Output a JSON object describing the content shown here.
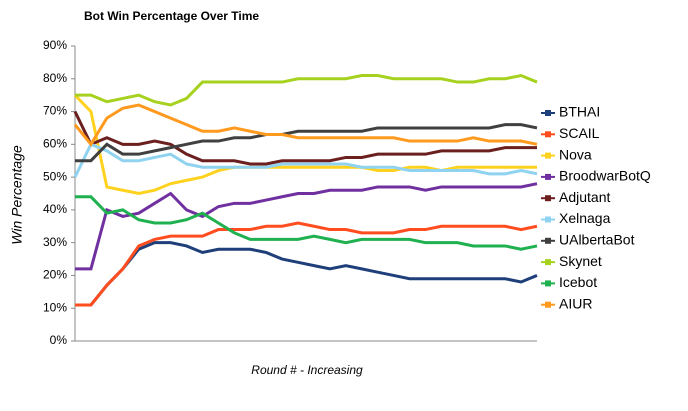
{
  "chart_data": {
    "type": "line",
    "title": "Bot Win Percentage  Over Time",
    "x_label": "Round # - Increasing",
    "y_label": "Win Percentage",
    "categories": [
      null,
      null,
      null,
      null,
      null,
      null,
      null,
      null,
      null,
      null,
      null,
      null,
      null,
      null,
      null,
      null,
      null,
      null,
      null,
      null,
      null,
      null,
      null,
      null,
      null,
      null,
      null,
      null,
      null,
      null
    ],
    "ylim": [
      0,
      90
    ],
    "yticks": [
      {
        "value": 0,
        "label": "0%"
      },
      {
        "value": 10,
        "label": "10%"
      },
      {
        "value": 20,
        "label": "20%"
      },
      {
        "value": 30,
        "label": "30%"
      },
      {
        "value": 40,
        "label": "40%"
      },
      {
        "value": 50,
        "label": "50%"
      },
      {
        "value": 60,
        "label": "60%"
      },
      {
        "value": 70,
        "label": "70%"
      },
      {
        "value": 80,
        "label": "80%"
      },
      {
        "value": 90,
        "label": "90%"
      }
    ],
    "grid": false,
    "legend": "right",
    "series": [
      {
        "name": "BTHAI",
        "color": "#1f3f7a",
        "values": [
          11,
          11,
          17,
          22,
          28,
          30,
          30,
          29,
          27,
          28,
          28,
          28,
          27,
          25,
          24,
          23,
          22,
          23,
          22,
          21,
          20,
          19,
          19,
          19,
          19,
          19,
          19,
          19,
          18,
          20
        ]
      },
      {
        "name": "SCAIL",
        "color": "#ff4d1f",
        "values": [
          11,
          11,
          17,
          22,
          29,
          31,
          32,
          32,
          32,
          34,
          34,
          34,
          35,
          35,
          36,
          35,
          34,
          34,
          33,
          33,
          33,
          34,
          34,
          35,
          35,
          35,
          35,
          35,
          34,
          35
        ]
      },
      {
        "name": "Nova",
        "color": "#ffd21f",
        "values": [
          75,
          70,
          47,
          46,
          45,
          46,
          48,
          49,
          50,
          52,
          53,
          53,
          53,
          53,
          53,
          53,
          53,
          53,
          53,
          52,
          52,
          53,
          53,
          52,
          53,
          53,
          53,
          53,
          53,
          53
        ]
      },
      {
        "name": "BroodwarBotQ",
        "color": "#7030a0",
        "values": [
          22,
          22,
          40,
          38,
          39,
          42,
          45,
          40,
          38,
          41,
          42,
          42,
          43,
          44,
          45,
          45,
          46,
          46,
          46,
          47,
          47,
          47,
          46,
          47,
          47,
          47,
          47,
          47,
          47,
          48
        ]
      },
      {
        "name": "Adjutant",
        "color": "#6b1f1f",
        "values": [
          70,
          60,
          62,
          60,
          60,
          61,
          60,
          57,
          55,
          55,
          55,
          54,
          54,
          55,
          55,
          55,
          55,
          56,
          56,
          57,
          57,
          57,
          57,
          58,
          58,
          58,
          58,
          59,
          59,
          59
        ]
      },
      {
        "name": "Xelnaga",
        "color": "#8fd3f0",
        "values": [
          50,
          60,
          58,
          55,
          55,
          56,
          57,
          54,
          53,
          53,
          53,
          53,
          53,
          54,
          54,
          54,
          54,
          54,
          53,
          53,
          53,
          52,
          52,
          52,
          52,
          52,
          51,
          51,
          52,
          51
        ]
      },
      {
        "name": "UAlbertaBot",
        "color": "#404040",
        "values": [
          55,
          55,
          60,
          57,
          57,
          58,
          59,
          60,
          61,
          61,
          62,
          62,
          63,
          63,
          64,
          64,
          64,
          64,
          64,
          65,
          65,
          65,
          65,
          65,
          65,
          65,
          65,
          66,
          66,
          65
        ]
      },
      {
        "name": "Skynet",
        "color": "#a6d21f",
        "values": [
          75,
          75,
          73,
          74,
          75,
          73,
          72,
          74,
          79,
          79,
          79,
          79,
          79,
          79,
          80,
          80,
          80,
          80,
          81,
          81,
          80,
          80,
          80,
          80,
          79,
          79,
          80,
          80,
          81,
          79
        ]
      },
      {
        "name": "Icebot",
        "color": "#1fb04f",
        "values": [
          44,
          44,
          39,
          40,
          37,
          36,
          36,
          37,
          39,
          36,
          33,
          31,
          31,
          31,
          31,
          32,
          31,
          30,
          31,
          31,
          31,
          31,
          30,
          30,
          30,
          29,
          29,
          29,
          28,
          29
        ]
      },
      {
        "name": "AIUR",
        "color": "#ff9a1f",
        "values": [
          66,
          60,
          68,
          71,
          72,
          70,
          68,
          66,
          64,
          64,
          65,
          64,
          63,
          63,
          62,
          62,
          62,
          62,
          62,
          62,
          62,
          61,
          61,
          61,
          61,
          62,
          61,
          61,
          61,
          60
        ]
      }
    ]
  }
}
